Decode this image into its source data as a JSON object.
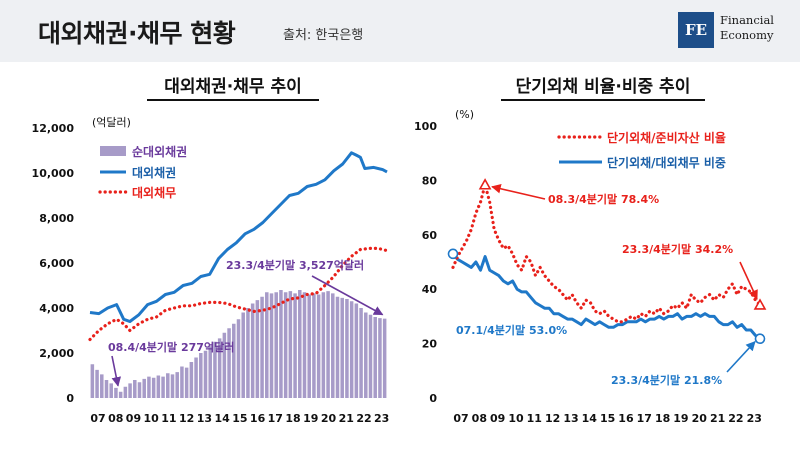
{
  "header": {
    "title": "대외채권·채무 현황",
    "source": "출처: 한국은행",
    "logo_mark": "FE",
    "logo_line1": "Financial",
    "logo_line2": "Economy"
  },
  "colors": {
    "net_assets": "#a79bc8",
    "assets": "#1f78c8",
    "debt": "#e8211b",
    "annotation_left": "#6a3a9c",
    "annotation_right_red": "#e8211b",
    "annotation_right_blue": "#1f78c8"
  },
  "chart_data": [
    {
      "type": "bar+line",
      "title": "대외채권·채무 추이",
      "ylabel": "(억달러)",
      "ylim": [
        0,
        12000
      ],
      "yticks": [
        "12,000",
        "10,000",
        "8,000",
        "6,000",
        "4,000",
        "2,000",
        "0"
      ],
      "ytick_values": [
        12000,
        10000,
        8000,
        6000,
        4000,
        2000,
        0
      ],
      "xticks": [
        "07",
        "08",
        "09",
        "10",
        "11",
        "12",
        "13",
        "14",
        "15",
        "16",
        "17",
        "18",
        "19",
        "20",
        "21",
        "22",
        "23"
      ],
      "xstart": 2007.0,
      "xend": 2023.75,
      "legend": [
        "순대외채권",
        "대외채권",
        "대외채무"
      ],
      "series": [
        {
          "name": "순대외채권",
          "kind": "bar",
          "values": [
            1500,
            1250,
            1050,
            800,
            650,
            450,
            277,
            500,
            650,
            800,
            700,
            850,
            950,
            900,
            1000,
            950,
            1100,
            1050,
            1150,
            1400,
            1350,
            1600,
            1800,
            2000,
            2100,
            2300,
            2500,
            2650,
            2900,
            3100,
            3300,
            3500,
            3800,
            4000,
            4200,
            4350,
            4500,
            4700,
            4650,
            4700,
            4800,
            4700,
            4750,
            4650,
            4800,
            4700,
            4600,
            4650,
            4600,
            4700,
            4750,
            4650,
            4500,
            4450,
            4400,
            4300,
            4200,
            4000,
            3800,
            3700,
            3600,
            3550,
            3527
          ]
        },
        {
          "name": "대외채권",
          "kind": "line",
          "points": [
            [
              2007.0,
              3800
            ],
            [
              2007.5,
              3750
            ],
            [
              2008.0,
              4000
            ],
            [
              2008.5,
              4150
            ],
            [
              2008.9,
              3500
            ],
            [
              2009.25,
              3400
            ],
            [
              2009.75,
              3700
            ],
            [
              2010.25,
              4150
            ],
            [
              2010.75,
              4300
            ],
            [
              2011.25,
              4600
            ],
            [
              2011.75,
              4700
            ],
            [
              2012.25,
              5000
            ],
            [
              2012.75,
              5100
            ],
            [
              2013.25,
              5400
            ],
            [
              2013.75,
              5500
            ],
            [
              2014.25,
              6200
            ],
            [
              2014.75,
              6600
            ],
            [
              2015.25,
              6900
            ],
            [
              2015.75,
              7300
            ],
            [
              2016.25,
              7500
            ],
            [
              2016.75,
              7800
            ],
            [
              2017.25,
              8200
            ],
            [
              2017.75,
              8600
            ],
            [
              2018.25,
              9000
            ],
            [
              2018.75,
              9100
            ],
            [
              2019.25,
              9400
            ],
            [
              2019.75,
              9500
            ],
            [
              2020.25,
              9700
            ],
            [
              2020.75,
              10100
            ],
            [
              2021.25,
              10400
            ],
            [
              2021.75,
              10900
            ],
            [
              2022.0,
              10800
            ],
            [
              2022.25,
              10700
            ],
            [
              2022.5,
              10200
            ],
            [
              2023.0,
              10250
            ],
            [
              2023.5,
              10150
            ],
            [
              2023.75,
              10050
            ]
          ]
        },
        {
          "name": "대외채무",
          "kind": "line-dotted",
          "points": [
            [
              2007.0,
              2600
            ],
            [
              2007.5,
              3000
            ],
            [
              2008.0,
              3300
            ],
            [
              2008.5,
              3500
            ],
            [
              2008.9,
              3300
            ],
            [
              2009.25,
              3000
            ],
            [
              2009.75,
              3300
            ],
            [
              2010.25,
              3500
            ],
            [
              2010.75,
              3600
            ],
            [
              2011.25,
              3900
            ],
            [
              2011.75,
              4000
            ],
            [
              2012.25,
              4100
            ],
            [
              2012.75,
              4100
            ],
            [
              2013.25,
              4200
            ],
            [
              2013.75,
              4250
            ],
            [
              2014.25,
              4250
            ],
            [
              2014.75,
              4200
            ],
            [
              2015.25,
              4050
            ],
            [
              2015.75,
              3950
            ],
            [
              2016.25,
              3850
            ],
            [
              2016.75,
              3900
            ],
            [
              2017.25,
              4000
            ],
            [
              2017.75,
              4200
            ],
            [
              2018.25,
              4400
            ],
            [
              2018.75,
              4450
            ],
            [
              2019.25,
              4600
            ],
            [
              2019.75,
              4650
            ],
            [
              2020.25,
              5000
            ],
            [
              2020.75,
              5400
            ],
            [
              2021.25,
              5900
            ],
            [
              2021.75,
              6300
            ],
            [
              2022.25,
              6600
            ],
            [
              2022.75,
              6650
            ],
            [
              2023.25,
              6650
            ],
            [
              2023.75,
              6550
            ]
          ]
        }
      ],
      "annotations": [
        {
          "text": "08.4/4분기말 277억달러",
          "x": 2008.75,
          "y": 277
        },
        {
          "text": "23.3/4분기말 3,527억달러",
          "x": 2023.5,
          "y": 3527
        }
      ]
    },
    {
      "type": "line",
      "title": "단기외채 비율·비중 추이",
      "ylabel": "(%)",
      "ylim": [
        0,
        100
      ],
      "yticks": [
        "100",
        "80",
        "60",
        "40",
        "20",
        "0"
      ],
      "ytick_values": [
        100,
        80,
        60,
        40,
        20,
        0
      ],
      "xticks": [
        "07",
        "08",
        "09",
        "10",
        "11",
        "12",
        "13",
        "14",
        "15",
        "16",
        "17",
        "18",
        "19",
        "20",
        "21",
        "22",
        "23"
      ],
      "xstart": 2007.0,
      "xend": 2023.75,
      "legend": [
        "단기외채/준비자산 비율",
        "단기외채/대외채무 비중"
      ],
      "series": [
        {
          "name": "단기외채/준비자산 비율",
          "kind": "line-dotted",
          "points": [
            [
              2007.0,
              48
            ],
            [
              2007.25,
              52
            ],
            [
              2007.5,
              55
            ],
            [
              2007.75,
              58
            ],
            [
              2008.0,
              62
            ],
            [
              2008.25,
              68
            ],
            [
              2008.5,
              72
            ],
            [
              2008.75,
              78.4
            ],
            [
              2009.0,
              72
            ],
            [
              2009.25,
              62
            ],
            [
              2009.5,
              58
            ],
            [
              2009.75,
              55
            ],
            [
              2010.0,
              56
            ],
            [
              2010.25,
              53
            ],
            [
              2010.5,
              49
            ],
            [
              2010.75,
              47
            ],
            [
              2011.0,
              52
            ],
            [
              2011.25,
              50
            ],
            [
              2011.5,
              45
            ],
            [
              2011.75,
              48
            ],
            [
              2012.0,
              45
            ],
            [
              2012.25,
              43
            ],
            [
              2012.5,
              41
            ],
            [
              2012.75,
              40
            ],
            [
              2013.0,
              38
            ],
            [
              2013.25,
              36
            ],
            [
              2013.5,
              38
            ],
            [
              2013.75,
              35
            ],
            [
              2014.0,
              33
            ],
            [
              2014.25,
              36
            ],
            [
              2014.5,
              35
            ],
            [
              2014.75,
              32
            ],
            [
              2015.0,
              31
            ],
            [
              2015.25,
              32
            ],
            [
              2015.5,
              30
            ],
            [
              2015.75,
              29
            ],
            [
              2016.0,
              28
            ],
            [
              2016.25,
              28
            ],
            [
              2016.5,
              29
            ],
            [
              2016.75,
              30
            ],
            [
              2017.0,
              29
            ],
            [
              2017.25,
              31
            ],
            [
              2017.5,
              30
            ],
            [
              2017.75,
              32
            ],
            [
              2018.0,
              31
            ],
            [
              2018.25,
              33
            ],
            [
              2018.5,
              31
            ],
            [
              2018.75,
              32
            ],
            [
              2019.0,
              34
            ],
            [
              2019.25,
              33
            ],
            [
              2019.5,
              35
            ],
            [
              2019.75,
              33
            ],
            [
              2020.0,
              38
            ],
            [
              2020.25,
              36
            ],
            [
              2020.5,
              35
            ],
            [
              2020.75,
              37
            ],
            [
              2021.0,
              38
            ],
            [
              2021.25,
              36
            ],
            [
              2021.5,
              38
            ],
            [
              2021.75,
              37
            ],
            [
              2022.0,
              40
            ],
            [
              2022.25,
              42
            ],
            [
              2022.5,
              38
            ],
            [
              2022.75,
              41
            ],
            [
              2023.0,
              40
            ],
            [
              2023.25,
              39
            ],
            [
              2023.5,
              36
            ],
            [
              2023.75,
              34.2
            ]
          ]
        },
        {
          "name": "단기외채/대외채무 비중",
          "kind": "line",
          "points": [
            [
              2007.0,
              53
            ],
            [
              2007.25,
              51
            ],
            [
              2007.5,
              50
            ],
            [
              2007.75,
              49
            ],
            [
              2008.0,
              48
            ],
            [
              2008.25,
              50
            ],
            [
              2008.5,
              47
            ],
            [
              2008.75,
              52
            ],
            [
              2009.0,
              47
            ],
            [
              2009.25,
              46
            ],
            [
              2009.5,
              45
            ],
            [
              2009.75,
              43
            ],
            [
              2010.0,
              42
            ],
            [
              2010.25,
              43
            ],
            [
              2010.5,
              40
            ],
            [
              2010.75,
              39
            ],
            [
              2011.0,
              39
            ],
            [
              2011.25,
              37
            ],
            [
              2011.5,
              35
            ],
            [
              2011.75,
              34
            ],
            [
              2012.0,
              33
            ],
            [
              2012.25,
              33
            ],
            [
              2012.5,
              31
            ],
            [
              2012.75,
              31
            ],
            [
              2013.0,
              30
            ],
            [
              2013.25,
              29
            ],
            [
              2013.5,
              29
            ],
            [
              2013.75,
              28
            ],
            [
              2014.0,
              27
            ],
            [
              2014.25,
              29
            ],
            [
              2014.5,
              28
            ],
            [
              2014.75,
              27
            ],
            [
              2015.0,
              28
            ],
            [
              2015.25,
              27
            ],
            [
              2015.5,
              26
            ],
            [
              2015.75,
              26
            ],
            [
              2016.0,
              27
            ],
            [
              2016.25,
              27
            ],
            [
              2016.5,
              28
            ],
            [
              2016.75,
              28
            ],
            [
              2017.0,
              28
            ],
            [
              2017.25,
              29
            ],
            [
              2017.5,
              28
            ],
            [
              2017.75,
              29
            ],
            [
              2018.0,
              29
            ],
            [
              2018.25,
              30
            ],
            [
              2018.5,
              29
            ],
            [
              2018.75,
              30
            ],
            [
              2019.0,
              30
            ],
            [
              2019.25,
              31
            ],
            [
              2019.5,
              29
            ],
            [
              2019.75,
              30
            ],
            [
              2020.0,
              30
            ],
            [
              2020.25,
              31
            ],
            [
              2020.5,
              30
            ],
            [
              2020.75,
              31
            ],
            [
              2021.0,
              30
            ],
            [
              2021.25,
              30
            ],
            [
              2021.5,
              28
            ],
            [
              2021.75,
              27
            ],
            [
              2022.0,
              27
            ],
            [
              2022.25,
              28
            ],
            [
              2022.5,
              26
            ],
            [
              2022.75,
              27
            ],
            [
              2023.0,
              25
            ],
            [
              2023.25,
              25
            ],
            [
              2023.5,
              23
            ],
            [
              2023.75,
              21.8
            ]
          ]
        }
      ],
      "annotations": [
        {
          "text": "08.3/4분기말 78.4%",
          "x": 2008.75,
          "y": 78.4
        },
        {
          "text": "23.3/4분기말 34.2%",
          "x": 2023.75,
          "y": 34.2
        },
        {
          "text": "07.1/4분기말 53.0%",
          "x": 2007.0,
          "y": 53.0
        },
        {
          "text": "23.3/4분기말 21.8%",
          "x": 2023.75,
          "y": 21.8
        }
      ]
    }
  ]
}
